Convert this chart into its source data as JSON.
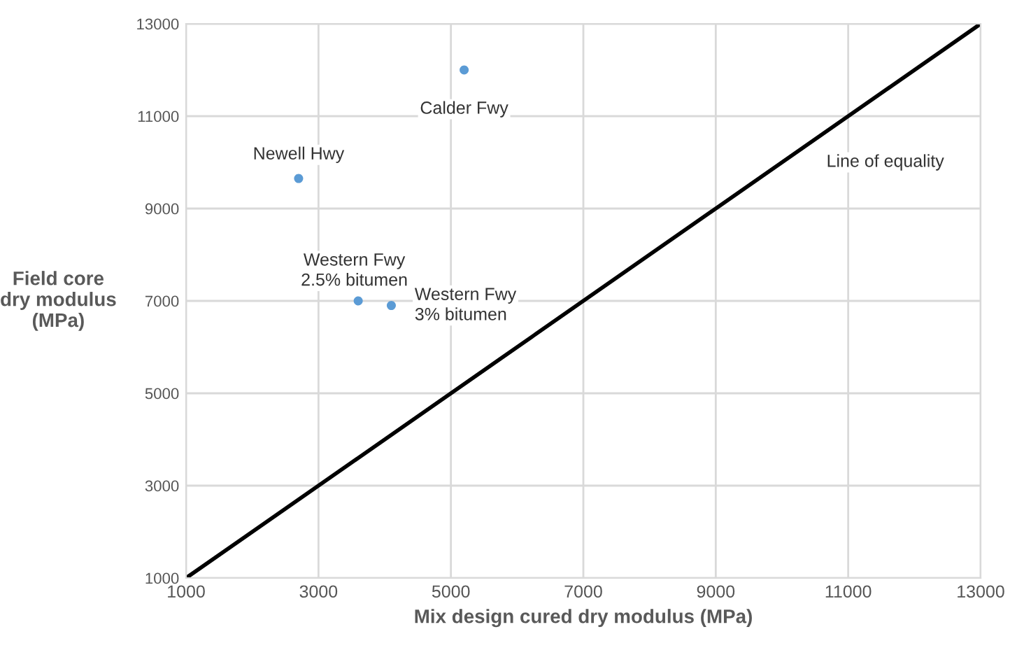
{
  "chart_data": {
    "type": "scatter",
    "xlabel": "Mix design cured dry modulus (MPa)",
    "ylabel": "Field core\ndry modulus\n(MPa)",
    "xlim": [
      1000,
      13000
    ],
    "ylim": [
      1000,
      13000
    ],
    "xticks": [
      1000,
      3000,
      5000,
      7000,
      9000,
      11000,
      13000
    ],
    "yticks": [
      1000,
      3000,
      5000,
      7000,
      9000,
      11000,
      13000
    ],
    "grid": true,
    "marker": "circle",
    "series": [
      {
        "color": "#5b9bd5",
        "x": [
          5200,
          2700,
          3600,
          4100
        ],
        "values": [
          12000,
          9650,
          7000,
          6900
        ]
      },
      {
        "type": "line",
        "color": "#000000",
        "x": [
          1000,
          13000
        ],
        "values": [
          1000,
          13000
        ],
        "line_style": "solid",
        "marker": "none"
      }
    ],
    "annotations": [
      {
        "text": "Calder Fwy",
        "x": 5200,
        "y": 12000
      },
      {
        "text": "Newell Hwy",
        "x": 2700,
        "y": 9650
      },
      {
        "text": "Western Fwy\n2.5% bitumen",
        "x": 3600,
        "y": 7000
      },
      {
        "text": "Western Fwy\n3% bitumen",
        "x": 4100,
        "y": 6900
      },
      "Line of equality"
    ]
  }
}
